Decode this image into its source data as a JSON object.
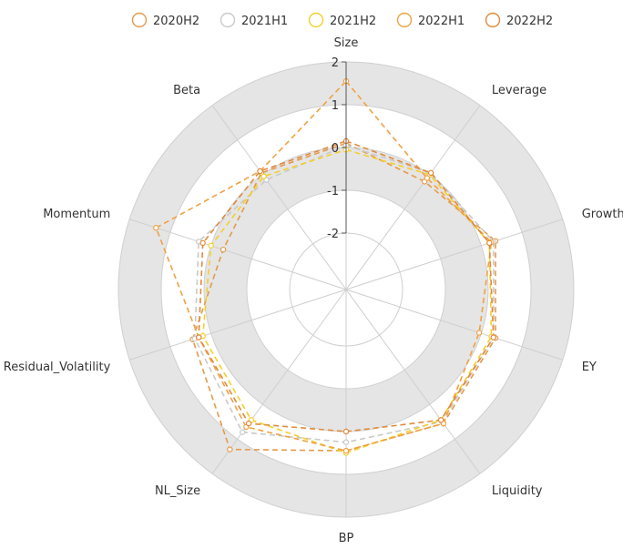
{
  "chart_data": {
    "type": "radar",
    "indicators": [
      "Size",
      "Leverage",
      "Growth",
      "EY",
      "Liquidity",
      "BP",
      "NL_Size",
      "Residual_Volatility",
      "Momentum",
      "Beta"
    ],
    "radial_range": [
      -2,
      2
    ],
    "radial_ticks": [
      "2",
      "1",
      "0",
      "-1",
      "-2"
    ],
    "series": [
      {
        "name": "2020H2",
        "color": "#E39A4C",
        "values": [
          0.1,
          -0.2,
          0.35,
          0.35,
          0.55,
          0.45,
          1.3,
          0.45,
          -0.3,
          0.05
        ]
      },
      {
        "name": "2021H1",
        "color": "#C9C9C9",
        "values": [
          0.05,
          0.05,
          0.3,
          0.3,
          0.5,
          0.25,
          0.8,
          0.4,
          0.3,
          -0.15
        ]
      },
      {
        "name": "2021H2",
        "color": "#F5CF2B",
        "values": [
          -0.05,
          0.0,
          0.2,
          0.25,
          0.45,
          0.5,
          0.45,
          0.2,
          0.0,
          -0.05
        ]
      },
      {
        "name": "2022H1",
        "color": "#F0A242",
        "values": [
          1.55,
          -0.1,
          0.25,
          -0.05,
          0.55,
          0.45,
          0.65,
          0.3,
          1.35,
          0.1
        ]
      },
      {
        "name": "2022H2",
        "color": "#E08A3C",
        "values": [
          0.15,
          0.05,
          0.2,
          0.3,
          0.45,
          0.0,
          0.55,
          0.3,
          0.2,
          0.1
        ]
      }
    ]
  }
}
